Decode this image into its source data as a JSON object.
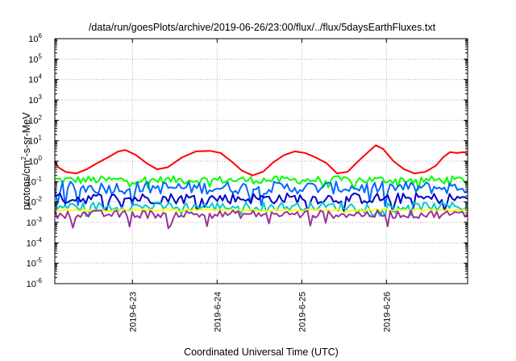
{
  "chart_data": {
    "type": "line",
    "title": "/data/run/goesPlots/archive/2019-06-26/23:00/flux/../flux/5daysEarthFluxes.txt",
    "xlabel": "Coordinated Universal Time (UTC)",
    "ylabel": {
      "prefix": "protons/cm",
      "superscript": "2",
      "suffix": "-s-sr-MeV"
    },
    "y_scale": "log",
    "ylim": [
      1e-06,
      1000000.0
    ],
    "y_ticks": [
      {
        "base": "10",
        "exp": "-6"
      },
      {
        "base": "10",
        "exp": "-5"
      },
      {
        "base": "10",
        "exp": "-4"
      },
      {
        "base": "10",
        "exp": "-3"
      },
      {
        "base": "10",
        "exp": "-2"
      },
      {
        "base": "10",
        "exp": "-1"
      },
      {
        "base": "10",
        "exp": "0"
      },
      {
        "base": "10",
        "exp": "1"
      },
      {
        "base": "10",
        "exp": "2"
      },
      {
        "base": "10",
        "exp": "3"
      },
      {
        "base": "10",
        "exp": "4"
      },
      {
        "base": "10",
        "exp": "5"
      },
      {
        "base": "10",
        "exp": "6"
      }
    ],
    "x_range": [
      "2019-06-22 02:00",
      "2019-06-26 23:00"
    ],
    "x_ticks": [
      "2019-6-23",
      "2019-6-24",
      "2019-6-25",
      "2019-6-26"
    ],
    "grid": true,
    "series": [
      {
        "color": "#ff0000",
        "values": [
          {
            "t": "2019-06-22 02:00",
            "v": 1.0
          },
          {
            "t": "2019-06-22 03:00",
            "v": 0.5
          },
          {
            "t": "2019-06-22 05:00",
            "v": 0.3
          },
          {
            "t": "2019-06-22 08:00",
            "v": 0.25
          },
          {
            "t": "2019-06-22 11:00",
            "v": 0.4
          },
          {
            "t": "2019-06-22 14:00",
            "v": 0.8
          },
          {
            "t": "2019-06-22 17:00",
            "v": 1.5
          },
          {
            "t": "2019-06-22 20:00",
            "v": 3.0
          },
          {
            "t": "2019-06-22 22:00",
            "v": 3.5
          },
          {
            "t": "2019-06-23 01:00",
            "v": 2.0
          },
          {
            "t": "2019-06-23 04:00",
            "v": 0.8
          },
          {
            "t": "2019-06-23 07:00",
            "v": 0.4
          },
          {
            "t": "2019-06-23 10:00",
            "v": 0.5
          },
          {
            "t": "2019-06-23 14:00",
            "v": 1.5
          },
          {
            "t": "2019-06-23 18:00",
            "v": 3.0
          },
          {
            "t": "2019-06-23 22:00",
            "v": 3.2
          },
          {
            "t": "2019-06-24 01:00",
            "v": 2.5
          },
          {
            "t": "2019-06-24 04:00",
            "v": 1.0
          },
          {
            "t": "2019-06-24 07:00",
            "v": 0.35
          },
          {
            "t": "2019-06-24 10:00",
            "v": 0.2
          },
          {
            "t": "2019-06-24 13:00",
            "v": 0.3
          },
          {
            "t": "2019-06-24 16:00",
            "v": 0.9
          },
          {
            "t": "2019-06-24 19:00",
            "v": 2.0
          },
          {
            "t": "2019-06-24 22:00",
            "v": 3.0
          },
          {
            "t": "2019-06-25 01:00",
            "v": 2.5
          },
          {
            "t": "2019-06-25 04:00",
            "v": 1.5
          },
          {
            "t": "2019-06-25 07:00",
            "v": 0.8
          },
          {
            "t": "2019-06-25 10:00",
            "v": 0.25
          },
          {
            "t": "2019-06-25 13:00",
            "v": 0.3
          },
          {
            "t": "2019-06-25 16:00",
            "v": 1.0
          },
          {
            "t": "2019-06-25 19:00",
            "v": 3.0
          },
          {
            "t": "2019-06-25 21:00",
            "v": 6.0
          },
          {
            "t": "2019-06-25 23:00",
            "v": 4.0
          },
          {
            "t": "2019-06-26 02:00",
            "v": 1.0
          },
          {
            "t": "2019-06-26 05:00",
            "v": 0.4
          },
          {
            "t": "2019-06-26 08:00",
            "v": 0.25
          },
          {
            "t": "2019-06-26 11:00",
            "v": 0.3
          },
          {
            "t": "2019-06-26 14:00",
            "v": 0.6
          },
          {
            "t": "2019-06-26 16:00",
            "v": 1.5
          },
          {
            "t": "2019-06-26 18:00",
            "v": 2.8
          },
          {
            "t": "2019-06-26 20:00",
            "v": 2.5
          },
          {
            "t": "2019-06-26 22:00",
            "v": 2.8
          },
          {
            "t": "2019-06-26 23:00",
            "v": 2.2
          }
        ]
      },
      {
        "color": "#00ff00",
        "approx_level": 0.12,
        "range": [
          0.04,
          0.3
        ]
      },
      {
        "color": "#0066ff",
        "approx_level": 0.05,
        "range": [
          0.006,
          0.15
        ]
      },
      {
        "color": "#0000cc",
        "approx_level": 0.015,
        "range": [
          0.003,
          0.05
        ]
      },
      {
        "color": "#00cccc",
        "approx_level": 0.006,
        "range": [
          0.002,
          0.02
        ]
      },
      {
        "color": "#ffff00",
        "approx_level": 0.004,
        "range": [
          0.003,
          0.005
        ]
      },
      {
        "color": "#993399",
        "approx_level": 0.0025,
        "range": [
          0.0005,
          0.004
        ]
      }
    ]
  }
}
